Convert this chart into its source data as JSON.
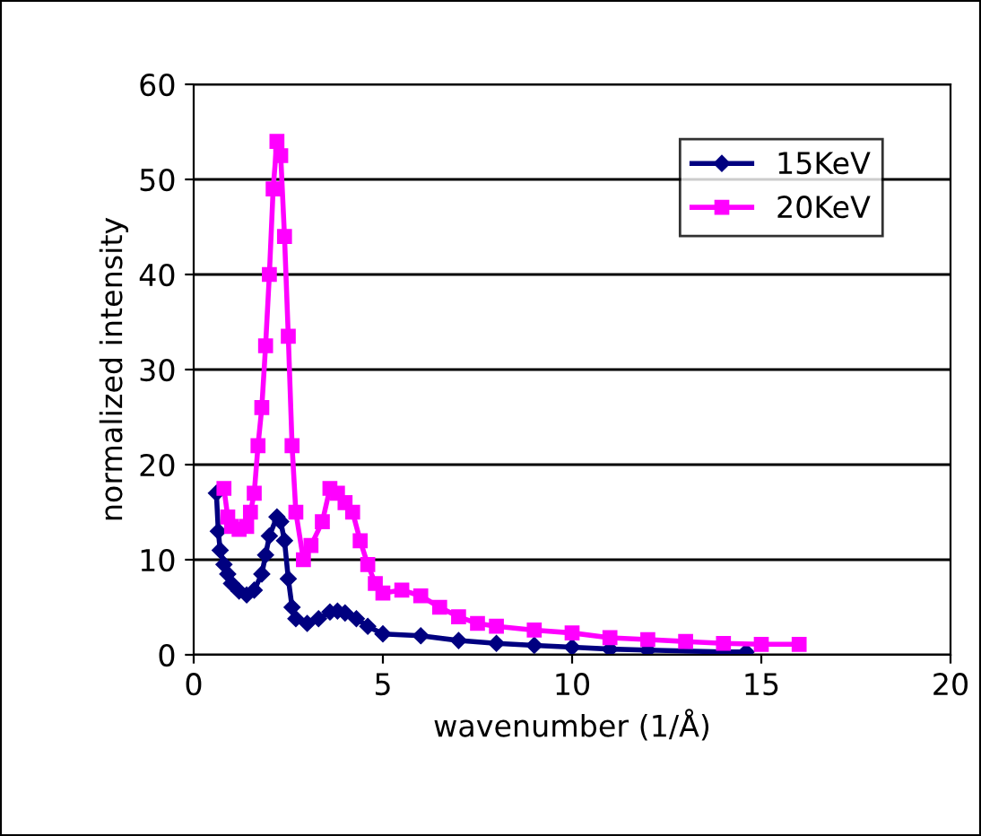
{
  "chart_data": {
    "type": "line",
    "xlabel": "wavenumber (1/Å)",
    "ylabel": "normalized intensity",
    "xlim": [
      0,
      20
    ],
    "xticks": [
      0,
      5,
      10,
      15,
      20
    ],
    "ylim": [
      0,
      60
    ],
    "yticks": [
      0,
      10,
      20,
      30,
      40,
      50,
      60
    ],
    "grid": "y",
    "legend": "top right",
    "line_style": "solid",
    "series": [
      {
        "name": "15KeV",
        "color": "#000080",
        "marker": "diamond",
        "x": [
          0.6,
          0.65,
          0.7,
          0.8,
          0.9,
          1.0,
          1.2,
          1.4,
          1.6,
          1.8,
          1.9,
          2.0,
          2.2,
          2.3,
          2.4,
          2.5,
          2.6,
          2.7,
          3.0,
          3.3,
          3.6,
          3.8,
          4.0,
          4.3,
          4.6,
          5.0,
          6.0,
          7.0,
          8.0,
          9.0,
          10.0,
          11.0,
          12.0,
          14.0,
          14.6
        ],
        "values": [
          17,
          13,
          11,
          9.5,
          8.5,
          7.5,
          6.7,
          6.3,
          6.8,
          8.5,
          10.5,
          12.5,
          14.5,
          14,
          12,
          8,
          5,
          3.8,
          3.3,
          3.8,
          4.5,
          4.6,
          4.4,
          3.8,
          3,
          2.2,
          2,
          1.5,
          1.2,
          1,
          0.8,
          0.6,
          0.5,
          0.3,
          0.3
        ]
      },
      {
        "name": "20KeV",
        "color": "#ff00ff",
        "marker": "square",
        "x": [
          0.8,
          0.9,
          1.0,
          1.2,
          1.4,
          1.5,
          1.6,
          1.7,
          1.8,
          1.9,
          2.0,
          2.1,
          2.2,
          2.3,
          2.4,
          2.5,
          2.6,
          2.7,
          2.9,
          3.1,
          3.4,
          3.6,
          3.8,
          4.0,
          4.2,
          4.4,
          4.6,
          4.8,
          5.0,
          5.5,
          6.0,
          6.5,
          7.0,
          7.5,
          8.0,
          9.0,
          10.0,
          11.0,
          12.0,
          13.0,
          14.0,
          15.0,
          16.0
        ],
        "values": [
          17.5,
          14.5,
          13.5,
          13.2,
          13.5,
          15,
          17,
          22,
          26,
          32.5,
          40,
          49,
          54,
          52.5,
          44,
          33.5,
          22,
          15,
          10,
          11.5,
          14,
          17.5,
          17,
          16,
          15,
          12,
          9.5,
          7.5,
          6.5,
          6.8,
          6.2,
          5,
          4,
          3.3,
          3,
          2.6,
          2.3,
          1.8,
          1.6,
          1.4,
          1.2,
          1.1,
          1.1
        ]
      }
    ]
  }
}
